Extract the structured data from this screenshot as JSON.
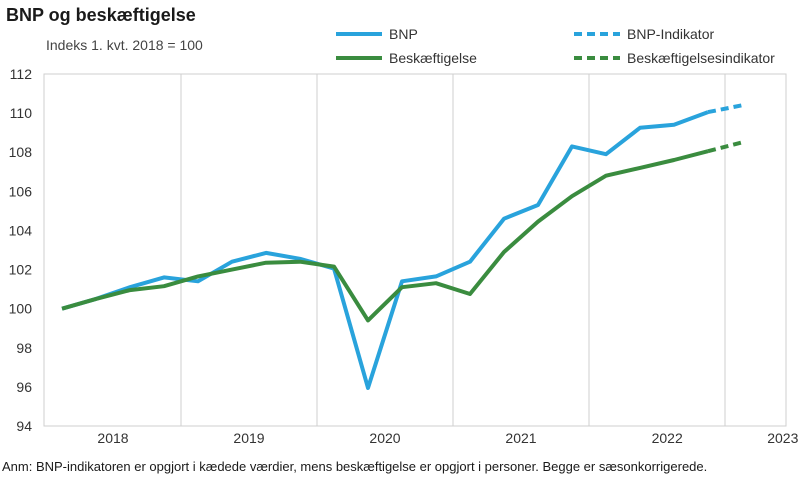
{
  "title": "BNP og beskæftigelse",
  "footnote": "Anm: BNP-indikatoren er opgjort i kædede værdier, mens beskæftigelse er opgjort i personer. Begge er sæsonkorrigerede.",
  "chart_data": {
    "type": "line",
    "subtitle": "Indeks 1. kvt. 2018 = 100",
    "ylim": [
      94,
      112
    ],
    "yticks": [
      94,
      96,
      98,
      100,
      102,
      104,
      106,
      108,
      110,
      112
    ],
    "year_labels": [
      "2018",
      "2019",
      "2020",
      "2021",
      "2022",
      "2023"
    ],
    "x": [
      "2018K1",
      "2018K2",
      "2018K3",
      "2018K4",
      "2019K1",
      "2019K2",
      "2019K3",
      "2019K4",
      "2020K1",
      "2020K2",
      "2020K3",
      "2020K4",
      "2021K1",
      "2021K2",
      "2021K3",
      "2021K4",
      "2022K1",
      "2022K2",
      "2022K3",
      "2022K4",
      "2023K1"
    ],
    "series": [
      {
        "name": "BNP",
        "color": "#29a3dc",
        "style": "solid",
        "values": [
          100.0,
          100.5,
          101.1,
          101.6,
          101.4,
          102.4,
          102.85,
          102.55,
          102.05,
          95.95,
          101.4,
          101.65,
          102.4,
          104.6,
          105.3,
          108.3,
          107.9,
          109.25,
          109.4,
          110.05,
          null
        ]
      },
      {
        "name": "Beskæftigelse",
        "color": "#3a8c3f",
        "style": "solid",
        "values": [
          100.0,
          100.5,
          100.95,
          101.15,
          101.65,
          102.0,
          102.35,
          102.4,
          102.15,
          99.4,
          101.1,
          101.3,
          100.75,
          102.9,
          104.45,
          105.75,
          106.8,
          107.2,
          107.6,
          108.05,
          null
        ]
      },
      {
        "name": "BNP-Indikator",
        "color": "#29a3dc",
        "style": "dashed",
        "values": [
          null,
          null,
          null,
          null,
          null,
          null,
          null,
          null,
          null,
          null,
          null,
          null,
          null,
          null,
          null,
          null,
          null,
          null,
          null,
          110.05,
          110.4
        ]
      },
      {
        "name": "Beskæftigelsesindikator",
        "color": "#3a8c3f",
        "style": "dashed",
        "values": [
          null,
          null,
          null,
          null,
          null,
          null,
          null,
          null,
          null,
          null,
          null,
          null,
          null,
          null,
          null,
          null,
          null,
          null,
          null,
          108.05,
          108.5
        ]
      }
    ],
    "legend_placement": "top-right",
    "grid": "vertical year separators"
  }
}
